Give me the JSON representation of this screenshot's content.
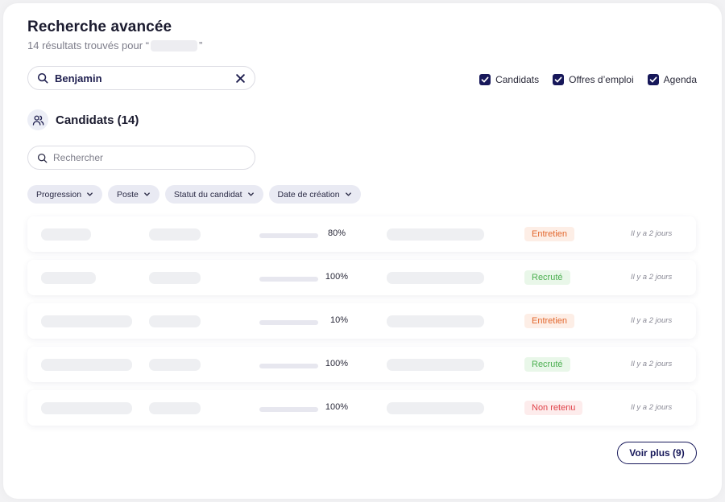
{
  "header": {
    "title": "Recherche avancée",
    "subtitle_prefix": "14 résultats trouvés pour “",
    "subtitle_suffix": "”"
  },
  "search": {
    "value": "Benjamin",
    "clear_icon": "close-icon"
  },
  "filters_toggle": [
    {
      "label": "Candidats",
      "checked": true
    },
    {
      "label": "Offres d’emploi",
      "checked": true
    },
    {
      "label": "Agenda",
      "checked": true
    }
  ],
  "section": {
    "icon": "users-icon",
    "title": "Candidats (14)"
  },
  "candidate_search": {
    "placeholder": "Rechercher"
  },
  "filter_chips": [
    "Progression",
    "Poste",
    "Statut du candidat",
    "Date de création"
  ],
  "rows": [
    {
      "progress": 80,
      "progress_label": "80%",
      "status": "Entretien",
      "status_type": "entretien",
      "date": "Il y a 2 jours"
    },
    {
      "progress": 100,
      "progress_label": "100%",
      "status": "Recruté",
      "status_type": "recrute",
      "date": "Il y a 2 jours"
    },
    {
      "progress": 10,
      "progress_label": "10%",
      "status": "Entretien",
      "status_type": "entretien",
      "date": "Il y a 2 jours"
    },
    {
      "progress": 100,
      "progress_label": "100%",
      "status": "Recruté",
      "status_type": "recrute",
      "date": "Il y a 2 jours"
    },
    {
      "progress": 100,
      "progress_label": "100%",
      "status": "Non retenu",
      "status_type": "nonretenu",
      "date": "Il y a 2 jours"
    }
  ],
  "more_button": {
    "label": "Voir plus (9)"
  },
  "colors": {
    "brand": "#17185a",
    "progress_start": "#8a2bff",
    "progress_end": "#3b1cf0"
  }
}
